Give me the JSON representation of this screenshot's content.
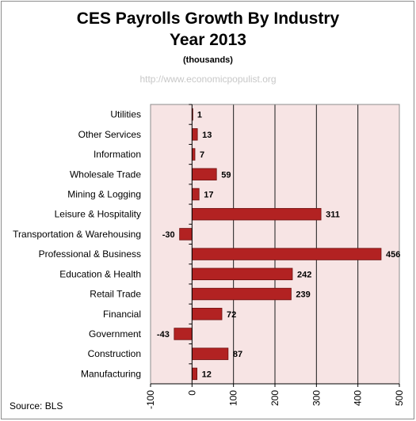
{
  "chart_data": {
    "type": "bar",
    "orientation": "horizontal",
    "title_lines": [
      "CES Payrolls Growth By Industry",
      "Year 2013"
    ],
    "subtitle": "(thousands)",
    "watermark": "http://www.economicpopulist.org",
    "source": "Source:  BLS",
    "categories": [
      "Utilities",
      "Other Services",
      "Information",
      "Wholesale Trade",
      "Mining & Logging",
      "Leisure & Hospitality",
      "Transportation & Warehousing",
      "Professional & Business",
      "Education & Health",
      "Retail Trade",
      "Financial",
      "Government",
      "Construction",
      "Manufacturing"
    ],
    "values": [
      1,
      13,
      7,
      59,
      17,
      311,
      -30,
      456,
      242,
      239,
      72,
      -43,
      87,
      12
    ],
    "xlim": [
      -100,
      500
    ],
    "xticks": [
      -100,
      0,
      100,
      200,
      300,
      400,
      500
    ],
    "grid": "vertical",
    "colors": {
      "bar": "#b22222",
      "bar_edge": "#6e0f0f",
      "plot_background": "#f7e4e4",
      "gridline": "#1a1a1a"
    }
  }
}
